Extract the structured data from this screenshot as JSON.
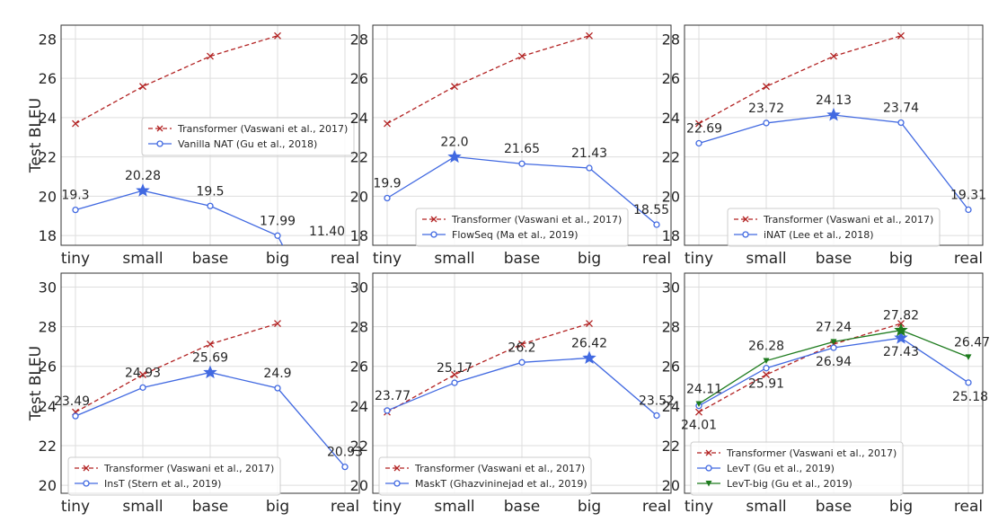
{
  "chart_data": [
    {
      "type": "line",
      "categories": [
        "tiny",
        "small",
        "base",
        "big",
        "real"
      ],
      "ylabel": "Test BLEU",
      "ylim": [
        17.5,
        28.7
      ],
      "yticks": [
        18,
        20,
        22,
        24,
        26,
        28
      ],
      "legend_position": "center-right",
      "grid": true,
      "series": [
        {
          "name": "Transformer (Vaswani et al., 2017)",
          "color": "#b22222",
          "style": "dashed",
          "marker": "x",
          "values": [
            23.69,
            25.58,
            27.12,
            28.16,
            null
          ],
          "labels": []
        },
        {
          "name": "Vanilla NAT (Gu et al., 2018)",
          "color": "#4169e1",
          "style": "solid",
          "marker": "circle",
          "values": [
            19.3,
            20.28,
            19.5,
            17.99,
            11.4
          ],
          "star_index": 1,
          "labels": [
            "19.3",
            "20.28",
            "19.5",
            "17.99",
            "11.40"
          ]
        }
      ]
    },
    {
      "type": "line",
      "categories": [
        "tiny",
        "small",
        "base",
        "big",
        "real"
      ],
      "ylabel": "",
      "ylim": [
        17.5,
        28.7
      ],
      "yticks": [
        18,
        20,
        22,
        24,
        26,
        28
      ],
      "legend_position": "lower-center",
      "grid": true,
      "series": [
        {
          "name": "Transformer (Vaswani et al., 2017)",
          "color": "#b22222",
          "style": "dashed",
          "marker": "x",
          "values": [
            23.69,
            25.58,
            27.12,
            28.16,
            null
          ],
          "labels": []
        },
        {
          "name": "FlowSeq (Ma et al., 2019)",
          "color": "#4169e1",
          "style": "solid",
          "marker": "circle",
          "values": [
            19.9,
            22.0,
            21.65,
            21.43,
            18.55
          ],
          "star_index": 1,
          "labels": [
            "19.9",
            "22.0",
            "21.65",
            "21.43",
            "18.55"
          ]
        }
      ]
    },
    {
      "type": "line",
      "categories": [
        "tiny",
        "small",
        "base",
        "big",
        "real"
      ],
      "ylabel": "",
      "ylim": [
        17.5,
        28.7
      ],
      "yticks": [
        18,
        20,
        22,
        24,
        26,
        28
      ],
      "legend_position": "lower-center",
      "grid": true,
      "series": [
        {
          "name": "Transformer (Vaswani et al., 2017)",
          "color": "#b22222",
          "style": "dashed",
          "marker": "x",
          "values": [
            23.69,
            25.58,
            27.12,
            28.16,
            null
          ],
          "labels": []
        },
        {
          "name": "iNAT (Lee et al., 2018)",
          "color": "#4169e1",
          "style": "solid",
          "marker": "circle",
          "values": [
            22.69,
            23.72,
            24.13,
            23.74,
            19.31
          ],
          "star_index": 2,
          "labels": [
            "22.69",
            "23.72",
            "24.13",
            "23.74",
            "19.31"
          ]
        }
      ]
    },
    {
      "type": "line",
      "categories": [
        "tiny",
        "small",
        "base",
        "big",
        "real"
      ],
      "ylabel": "Test BLEU",
      "ylim": [
        19.6,
        30.7
      ],
      "yticks": [
        20,
        22,
        24,
        26,
        28,
        30
      ],
      "legend_position": "lower-left",
      "grid": true,
      "series": [
        {
          "name": "Transformer (Vaswani et al., 2017)",
          "color": "#b22222",
          "style": "dashed",
          "marker": "x",
          "values": [
            23.69,
            25.58,
            27.12,
            28.16,
            null
          ],
          "labels": []
        },
        {
          "name": "InsT (Stern et al., 2019)",
          "color": "#4169e1",
          "style": "solid",
          "marker": "circle",
          "values": [
            23.49,
            24.93,
            25.69,
            24.9,
            20.93
          ],
          "star_index": 2,
          "labels": [
            "23.49",
            "24.93",
            "25.69",
            "24.9",
            "20.93"
          ]
        }
      ]
    },
    {
      "type": "line",
      "categories": [
        "tiny",
        "small",
        "base",
        "big",
        "real"
      ],
      "ylabel": "",
      "ylim": [
        19.6,
        30.7
      ],
      "yticks": [
        20,
        22,
        24,
        26,
        28,
        30
      ],
      "legend_position": "lower-left",
      "grid": true,
      "series": [
        {
          "name": "Transformer (Vaswani et al., 2017)",
          "color": "#b22222",
          "style": "dashed",
          "marker": "x",
          "values": [
            23.69,
            25.58,
            27.12,
            28.16,
            null
          ],
          "labels": []
        },
        {
          "name": "MaskT (Ghazvininejad et al., 2019)",
          "color": "#4169e1",
          "style": "solid",
          "marker": "circle",
          "values": [
            23.77,
            25.17,
            26.2,
            26.42,
            23.52
          ],
          "star_index": 3,
          "labels": [
            "23.77",
            "25.17",
            "26.2",
            "26.42",
            "23.52"
          ]
        }
      ]
    },
    {
      "type": "line",
      "categories": [
        "tiny",
        "small",
        "base",
        "big",
        "real"
      ],
      "ylabel": "",
      "ylim": [
        19.6,
        30.7
      ],
      "yticks": [
        20,
        22,
        24,
        26,
        28,
        30
      ],
      "legend_position": "lower-left",
      "grid": true,
      "series": [
        {
          "name": "Transformer (Vaswani et al., 2017)",
          "color": "#b22222",
          "style": "dashed",
          "marker": "x",
          "values": [
            23.69,
            25.58,
            27.12,
            28.16,
            null
          ],
          "labels": []
        },
        {
          "name": "LevT (Gu et al., 2019)",
          "color": "#4169e1",
          "style": "solid",
          "marker": "circle",
          "values": [
            24.01,
            25.91,
            26.94,
            27.43,
            25.18
          ],
          "star_index": 3,
          "labels": [
            "24.01",
            "25.91",
            "26.94",
            "27.43",
            "25.18"
          ]
        },
        {
          "name": "LevT-big (Gu et al., 2019)",
          "color": "#1e7b1e",
          "style": "solid",
          "marker": "triangle",
          "values": [
            24.11,
            26.28,
            27.24,
            27.82,
            26.47
          ],
          "star_index": 3,
          "labels": [
            "24.11",
            "26.28",
            "27.24",
            "27.82",
            "26.47"
          ]
        }
      ]
    }
  ]
}
